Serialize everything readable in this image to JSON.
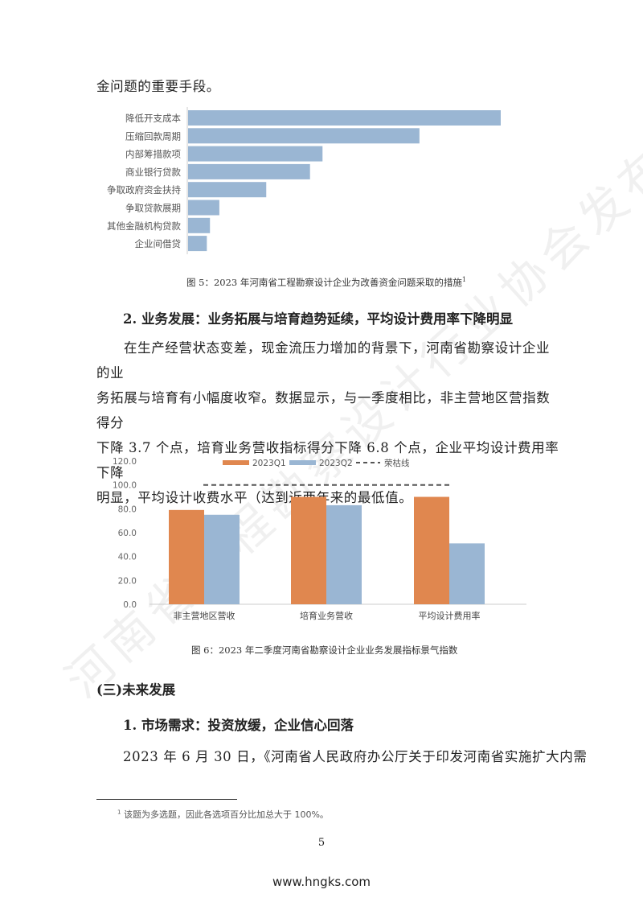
{
  "intro_line": "金问题的重要手段。",
  "watermark": "河南省工程勘察设计行业协会发布",
  "chart_data": [
    {
      "type": "bar",
      "orientation": "horizontal",
      "categories": [
        "降低开支成本",
        "压缩回款周期",
        "内部筹措款项",
        "商业银行贷款",
        "争取政府资金扶持",
        "争取贷款展期",
        "其他金融机构贷款",
        "企业间借贷"
      ],
      "values": [
        100,
        74,
        43,
        39,
        25,
        10,
        7,
        6
      ],
      "value_note": "relative bar length (no axis printed)",
      "color": "#9ab6d3",
      "title": "图 5：2023 年河南省工程勘察设计企业为改善资金问题采取的措施",
      "title_footnote_mark": "1"
    },
    {
      "type": "bar",
      "categories": [
        "非主营地区营收",
        "培育业务营收",
        "平均设计费用率"
      ],
      "series": [
        {
          "name": "2023Q1",
          "values": [
            79,
            90,
            90
          ],
          "color": "#e0874f"
        },
        {
          "name": "2023Q2",
          "values": [
            75,
            83,
            51
          ],
          "color": "#9ab6d3"
        }
      ],
      "reference_line": {
        "name": "荣枯线",
        "value": 100,
        "style": "dashed",
        "color": "#555555"
      },
      "ylim": [
        0,
        120
      ],
      "yticks": [
        "0.0",
        "20.0",
        "40.0",
        "60.0",
        "80.0",
        "100.0",
        "120.0"
      ],
      "legend": "top",
      "grid": false,
      "title": "图 6：2023 年二季度河南省勘察设计企业业务发展指标景气指数"
    }
  ],
  "section2": {
    "heading": "2.  业务发展：业务拓展与培育趋势延续，平均设计费用率下降明显",
    "lines": [
      "在生产经营状态变差，现金流压力增加的背景下，河南省勘察设计企业的业",
      "务拓展与培育有小幅度收窄。数据显示，与一季度相比，非主营地区营指数得分",
      "下降 3.7 个点，培育业务营收指标得分下降 6.8 个点，企业平均设计费用率下降",
      "明显，平均设计收费水平（达到近两年来的最低值。"
    ]
  },
  "section3": {
    "heading": "(三)未来发展",
    "sub_heading": "1.  市场需求：投资放缓，企业信心回落",
    "line": "2023 年 6 月 30 日，《河南省人民政府办公厅关于印发河南省实施扩大内需"
  },
  "footnote": {
    "mark": "1",
    "text": "该题为多选题，因此各选项百分比加总大于 100%。"
  },
  "page_number": "5",
  "footer_url": "www.hngks.com"
}
